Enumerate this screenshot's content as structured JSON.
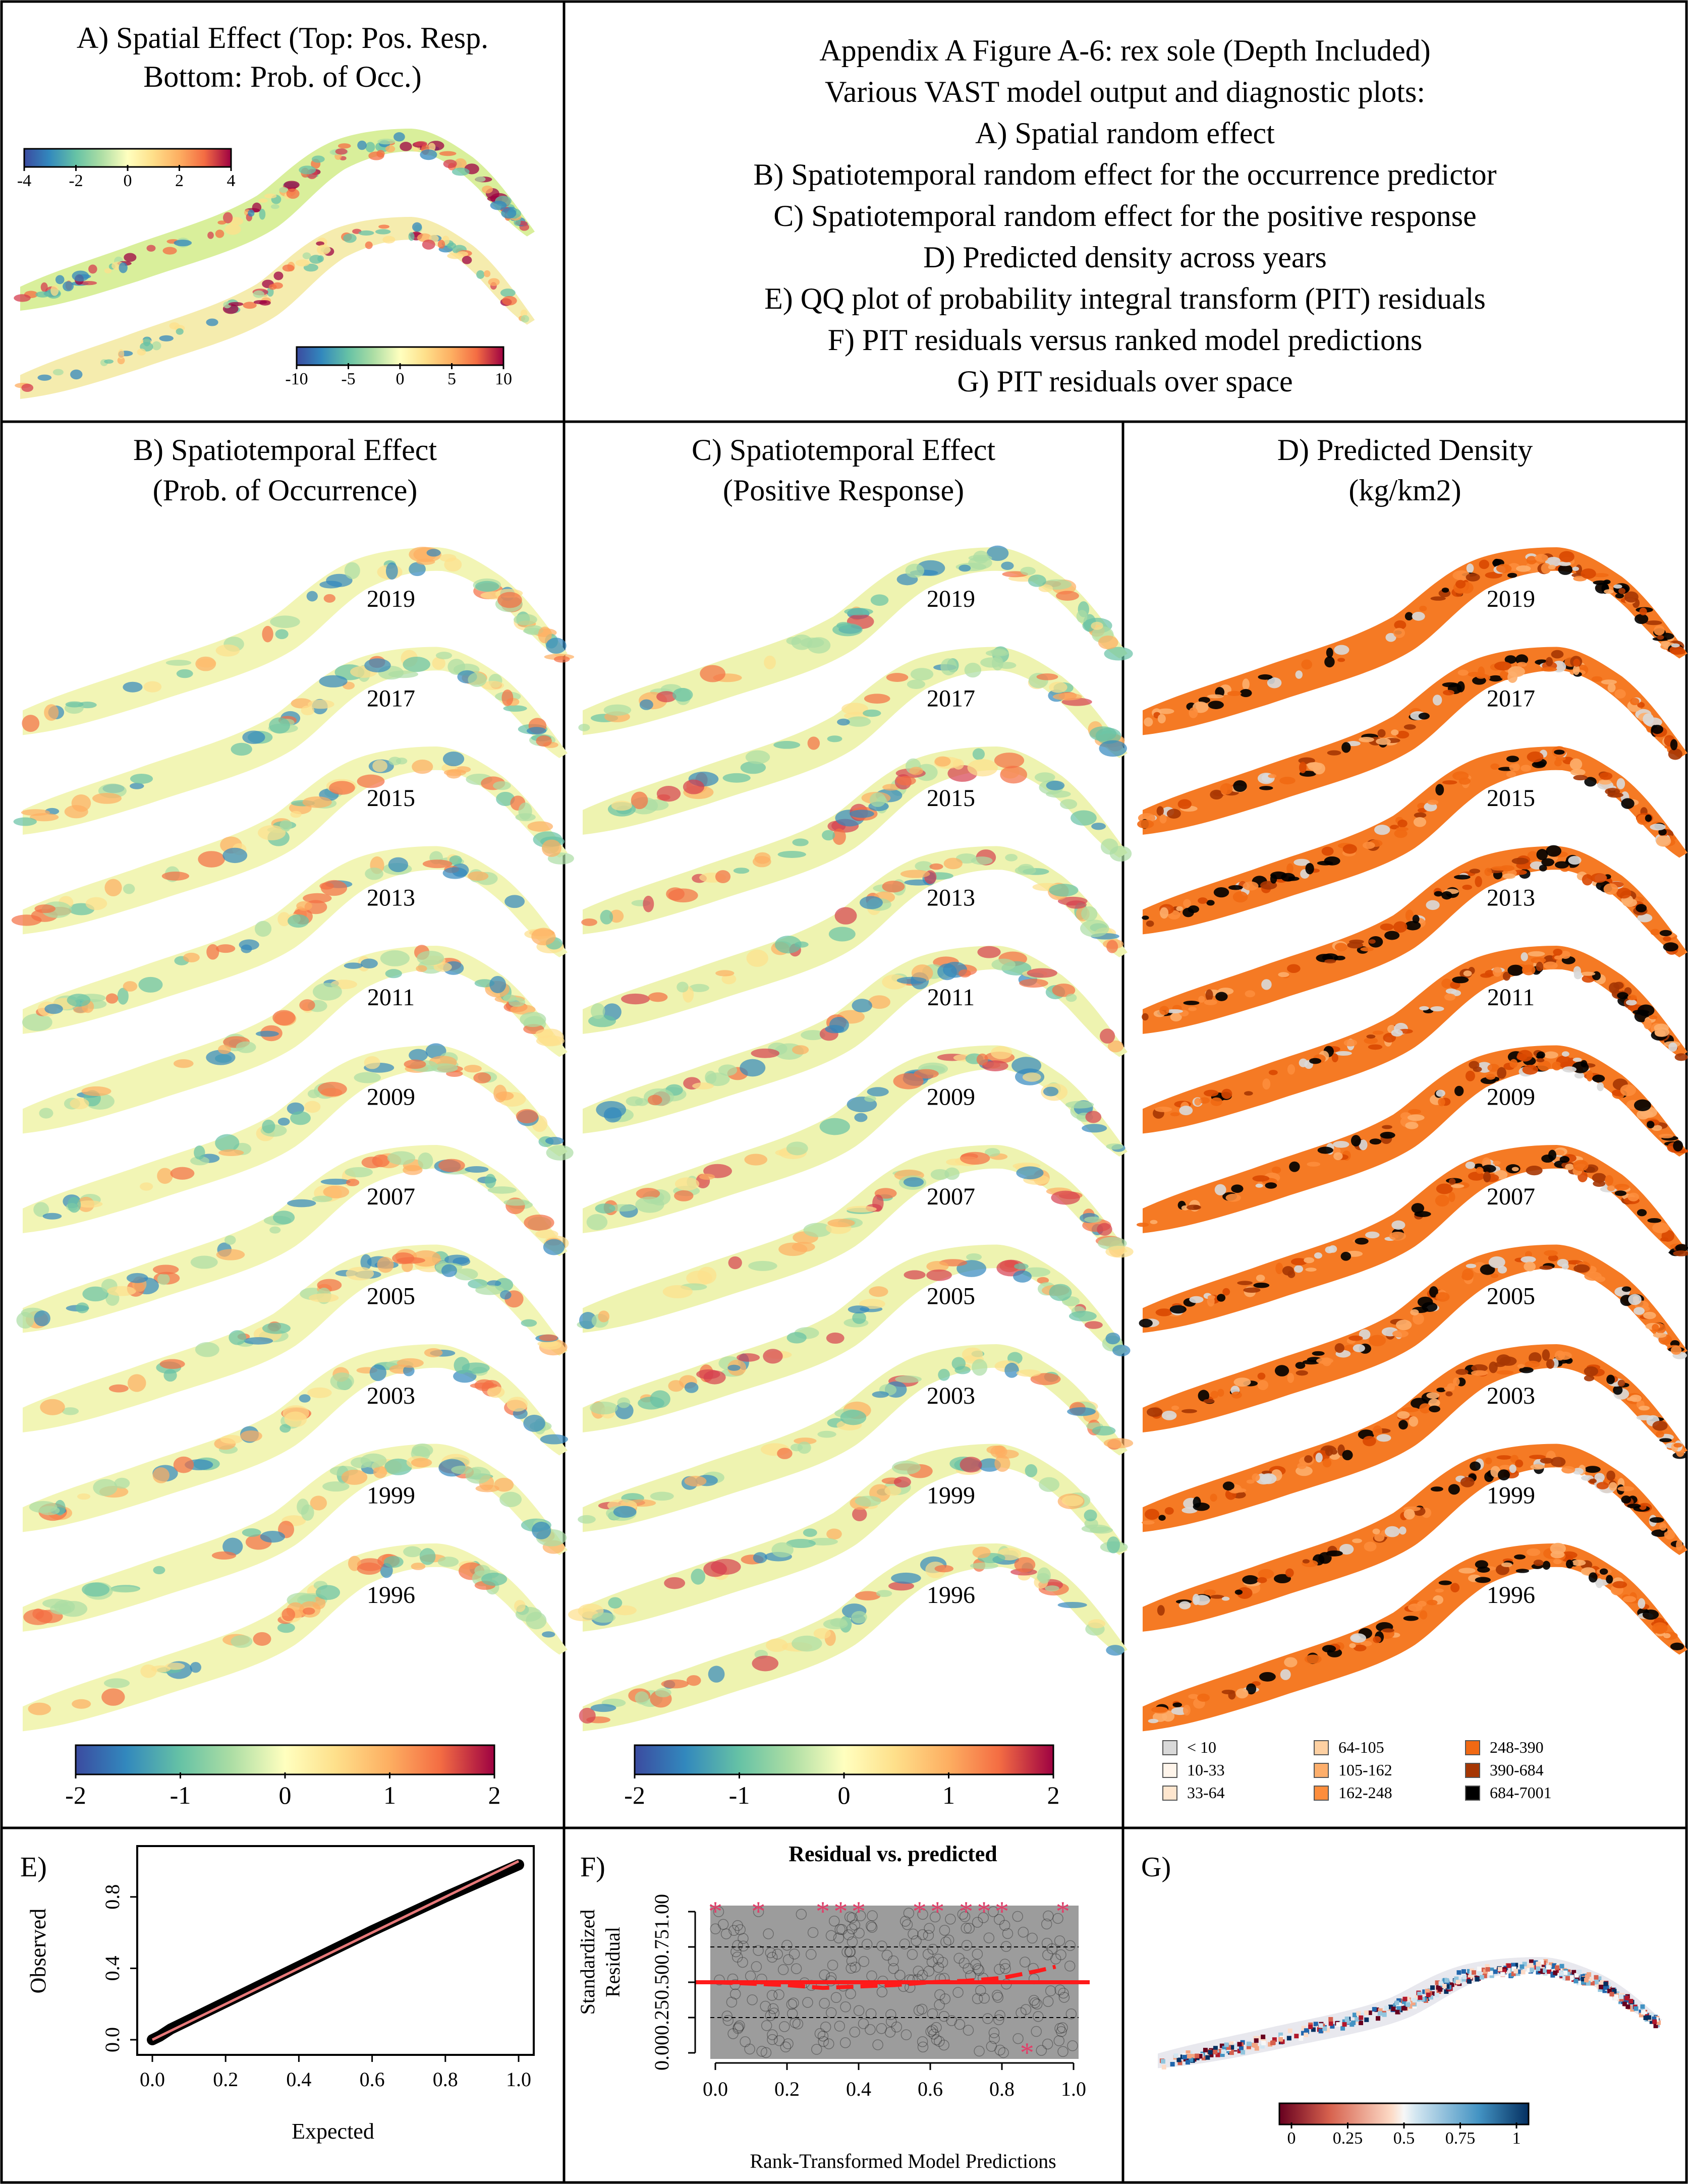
{
  "figure": {
    "title_lines": [
      "Appendix A Figure A-6: rex sole (Depth Included)",
      "Various VAST model output and diagnostic plots:",
      "A) Spatial random effect",
      "B) Spatiotemporal random effect for the occurrence predictor",
      "C) Spatiotemporal random effect for the positive response",
      "D) Predicted density across years",
      "E) QQ plot of probability integral transform (PIT) residuals",
      "F) PIT residuals versus ranked model predictions",
      "G) PIT residuals over space"
    ]
  },
  "panelA": {
    "title_line1": "A) Spatial Effect (Top: Pos. Resp.",
    "title_line2": "Bottom: Prob. of Occ.)",
    "scale1_ticks": [
      "-4",
      "-2",
      "0",
      "2",
      "4"
    ],
    "scale2_ticks": [
      "-10",
      "-5",
      "0",
      "5",
      "10"
    ]
  },
  "panelB": {
    "title_line1": "B) Spatiotemporal Effect",
    "title_line2": "(Prob. of Occurrence)",
    "scale_ticks": [
      "-2",
      "-1",
      "0",
      "1",
      "2"
    ]
  },
  "panelC": {
    "title_line1": "C) Spatiotemporal Effect",
    "title_line2": "(Positive Response)",
    "scale_ticks": [
      "-2",
      "-1",
      "0",
      "1",
      "2"
    ]
  },
  "panelD": {
    "title_line1": "D) Predicted Density",
    "title_line2": "(kg/km2)",
    "legend": [
      {
        "label": "< 10",
        "color": "#d9d9d9"
      },
      {
        "label": "10-33",
        "color": "#fff5eb"
      },
      {
        "label": "33-64",
        "color": "#fee6ce"
      },
      {
        "label": "64-105",
        "color": "#fdd0a2"
      },
      {
        "label": "105-162",
        "color": "#fdae6b"
      },
      {
        "label": "162-248",
        "color": "#fd8d3c"
      },
      {
        "label": "248-390",
        "color": "#f16913"
      },
      {
        "label": "390-684",
        "color": "#a63603"
      },
      {
        "label": "684-7001",
        "color": "#000000"
      }
    ]
  },
  "years": [
    "2019",
    "2017",
    "2015",
    "2013",
    "2011",
    "2009",
    "2007",
    "2005",
    "2003",
    "1999",
    "1996"
  ],
  "panelE": {
    "label": "E)",
    "xlabel": "Expected",
    "ylabel": "Observed",
    "xticks": [
      "0.0",
      "0.2",
      "0.4",
      "0.6",
      "0.8",
      "1.0"
    ],
    "yticks": [
      "0.0",
      "0.4",
      "0.8"
    ]
  },
  "panelF": {
    "label": "F)",
    "title": "Residual vs. predicted",
    "xlabel": "Rank-Transformed Model Predictions",
    "ylabel_line1": "Standardized",
    "ylabel_line2": "Residual",
    "xticks": [
      "0.0",
      "0.2",
      "0.4",
      "0.6",
      "0.8",
      "1.0"
    ],
    "yticks": [
      "0.00",
      "0.25",
      "0.50",
      "0.75",
      "1.00"
    ]
  },
  "panelG": {
    "label": "G)",
    "scale_ticks": [
      "0",
      "0.25",
      "0.5",
      "0.75",
      "1"
    ]
  },
  "chart_data": [
    {
      "type": "heatmap",
      "panel": "A",
      "colorbar_top": [
        -4,
        4
      ],
      "colorbar_bottom": [
        -10,
        10
      ]
    },
    {
      "type": "heatmap",
      "panel": "B",
      "years": [
        2019,
        2017,
        2015,
        2013,
        2011,
        2009,
        2007,
        2005,
        2003,
        1999,
        1996
      ],
      "colorbar": [
        -2,
        2
      ]
    },
    {
      "type": "heatmap",
      "panel": "C",
      "years": [
        2019,
        2017,
        2015,
        2013,
        2011,
        2009,
        2007,
        2005,
        2003,
        1999,
        1996
      ],
      "colorbar": [
        -2,
        2
      ]
    },
    {
      "type": "heatmap",
      "panel": "D",
      "years": [
        2019,
        2017,
        2015,
        2013,
        2011,
        2009,
        2007,
        2005,
        2003,
        1999,
        1996
      ],
      "classes": [
        "< 10",
        "10-33",
        "33-64",
        "64-105",
        "105-162",
        "162-248",
        "248-390",
        "390-684",
        "684-7001"
      ]
    },
    {
      "type": "line",
      "panel": "E",
      "xlabel": "Expected",
      "ylabel": "Observed",
      "xlim": [
        0,
        1
      ],
      "ylim": [
        0,
        1
      ],
      "series": [
        {
          "x": [
            0.0,
            0.02,
            0.05,
            0.2,
            0.4,
            0.6,
            0.8,
            1.0
          ],
          "y": [
            0.0,
            0.02,
            0.06,
            0.21,
            0.41,
            0.61,
            0.8,
            0.98
          ]
        }
      ]
    },
    {
      "type": "scatter",
      "panel": "F",
      "title": "Residual vs. predicted",
      "xlabel": "Rank-Transformed Model Predictions",
      "xlim": [
        0,
        1
      ],
      "ylim": [
        0,
        1
      ],
      "reference_lines": [
        0.25,
        0.5,
        0.75
      ],
      "series": [
        {
          "x": [
            0.0,
            0.1,
            0.2,
            0.3,
            0.4,
            0.5,
            0.6,
            0.7,
            0.8,
            0.9,
            0.95
          ],
          "y": [
            0.5,
            0.49,
            0.48,
            0.46,
            0.47,
            0.48,
            0.5,
            0.51,
            0.53,
            0.58,
            0.61
          ]
        }
      ],
      "outliers_x": [
        0.0,
        0.12,
        0.3,
        0.35,
        0.4,
        0.57,
        0.62,
        0.7,
        0.75,
        0.8,
        0.97,
        0.87
      ],
      "outliers_y": [
        1.0,
        1.0,
        1.0,
        1.0,
        1.0,
        1.0,
        1.0,
        1.0,
        1.0,
        1.0,
        1.0,
        0.0
      ]
    },
    {
      "type": "heatmap",
      "panel": "G",
      "colorbar": [
        0,
        1
      ]
    }
  ]
}
